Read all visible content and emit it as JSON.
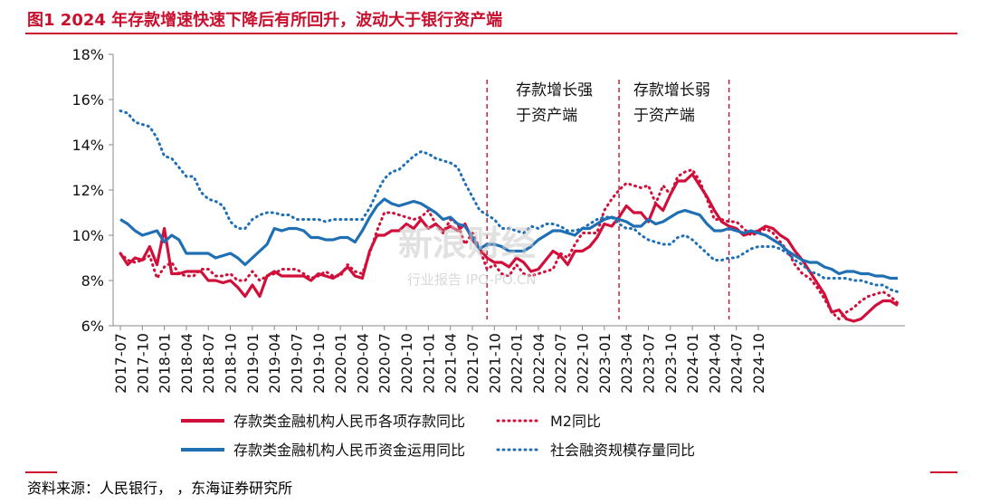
{
  "figure": {
    "title": "图1  2024 年存款增速快速下降后有所回升，波动大于银行资产端",
    "source": "资料来源：人民银行，            ，东海证券研究所",
    "watermark": {
      "main": "新浪财经",
      "sub": "行业报告 IPO-PO.CN"
    }
  },
  "colors": {
    "accent": "#c8102e",
    "red_series": "#d0103a",
    "blue_series": "#1f6fb5",
    "axis": "#888888"
  },
  "chart_data": {
    "type": "line",
    "title": "",
    "xlabel": "",
    "ylabel": "",
    "ylim": [
      6,
      18
    ],
    "yticks": [
      6,
      8,
      10,
      12,
      14,
      16,
      18
    ],
    "ytick_labels": [
      "6%",
      "8%",
      "10%",
      "12%",
      "14%",
      "16%",
      "18%"
    ],
    "xtick_labels": [
      "2017-07",
      "2017-10",
      "2018-01",
      "2018-04",
      "2018-07",
      "2018-10",
      "2019-01",
      "2019-04",
      "2019-07",
      "2019-10",
      "2020-01",
      "2020-04",
      "2020-07",
      "2020-10",
      "2021-01",
      "2021-04",
      "2021-07",
      "2021-10",
      "2022-01",
      "2022-04",
      "2022-07",
      "2022-10",
      "2023-01",
      "2023-04",
      "2023-07",
      "2023-10",
      "2024-01",
      "2024-04",
      "2024-07",
      "2024-10"
    ],
    "grid": false,
    "legend_position": "bottom",
    "x_start": "2017-07",
    "annotations": [
      {
        "lines": [
          "存款增长强",
          "于资产端"
        ],
        "between": [
          "2021-10",
          "2023-03"
        ]
      },
      {
        "lines": [
          "存款增长弱",
          "于资产端"
        ],
        "between": [
          "2023-03",
          "2024-06"
        ]
      }
    ],
    "dividers": [
      "2021-09",
      "2023-03",
      "2024-06"
    ],
    "series": [
      {
        "name": "存款类金融机构人民币各项存款同比",
        "color": "#d0103a",
        "dash": "solid",
        "values": [
          9.2,
          8.7,
          9.0,
          8.9,
          9.5,
          8.7,
          10.3,
          8.3,
          8.3,
          8.4,
          8.4,
          8.4,
          8.0,
          8.0,
          7.9,
          8.0,
          7.7,
          7.3,
          7.8,
          7.3,
          8.2,
          8.4,
          8.2,
          8.2,
          8.2,
          8.2,
          8.0,
          8.3,
          8.2,
          8.1,
          8.3,
          8.6,
          8.2,
          8.1,
          9.3,
          10.0,
          10.0,
          10.2,
          10.2,
          10.5,
          10.3,
          10.7,
          10.3,
          10.5,
          10.2,
          10.4,
          10.2,
          10.5,
          9.8,
          9.4,
          9.0,
          8.8,
          8.8,
          8.6,
          9.0,
          8.8,
          8.4,
          8.5,
          8.9,
          9.3,
          9.1,
          8.7,
          9.3,
          9.3,
          9.5,
          9.9,
          10.5,
          10.4,
          10.8,
          11.3,
          11.0,
          11.0,
          10.6,
          11.4,
          11.1,
          11.8,
          12.4,
          12.4,
          12.7,
          12.2,
          11.7,
          11.1,
          10.6,
          10.4,
          10.3,
          10.0,
          10.1,
          10.2,
          10.4,
          10.3,
          10.0,
          9.8,
          9.3,
          8.9,
          8.4,
          7.9,
          7.4,
          6.6,
          6.7,
          6.3,
          6.2,
          6.3,
          6.6,
          6.9,
          7.1,
          7.1,
          6.9
        ]
      },
      {
        "name": "M2同比",
        "color": "#d0103a",
        "dash": "dotted",
        "values": [
          9.2,
          8.9,
          8.8,
          8.9,
          9.1,
          8.1,
          8.6,
          8.8,
          8.3,
          8.2,
          8.2,
          8.5,
          8.5,
          8.2,
          8.2,
          8.3,
          8.0,
          8.0,
          8.4,
          8.0,
          8.2,
          8.3,
          8.5,
          8.5,
          8.5,
          8.3,
          8.1,
          8.2,
          8.4,
          8.2,
          8.2,
          8.7,
          8.4,
          8.3,
          9.2,
          10.2,
          11.0,
          11.0,
          10.9,
          10.8,
          10.7,
          10.8,
          11.1,
          10.5,
          10.1,
          10.7,
          10.5,
          9.6,
          10.1,
          9.4,
          8.5,
          8.7,
          8.3,
          8.2,
          8.7,
          8.3,
          8.2,
          8.3,
          8.4,
          8.5,
          9.2,
          9.0,
          9.6,
          10.1,
          10.1,
          10.1,
          11.1,
          11.6,
          12.0,
          12.3,
          12.2,
          12.1,
          12.2,
          11.4,
          12.2,
          11.8,
          12.6,
          12.8,
          12.9,
          12.4,
          11.6,
          10.7,
          10.7,
          10.6,
          10.6,
          10.3,
          10.0,
          10.1,
          10.3,
          10.1,
          9.7,
          9.3,
          8.7,
          8.3,
          8.1,
          7.7,
          7.2,
          6.6,
          6.3,
          6.6,
          6.8,
          7.1,
          7.3,
          7.4,
          7.5,
          7.3,
          7.0
        ]
      },
      {
        "name": "存款类金融机构人民币资金运用同比",
        "color": "#1f6fb5",
        "dash": "solid",
        "values": [
          10.7,
          10.5,
          10.2,
          10.0,
          10.1,
          10.2,
          9.7,
          10.0,
          9.8,
          9.2,
          9.2,
          9.2,
          9.2,
          9.0,
          9.1,
          9.2,
          9.0,
          8.7,
          9.0,
          9.3,
          9.6,
          10.3,
          10.2,
          10.3,
          10.3,
          10.2,
          9.9,
          9.9,
          9.8,
          9.8,
          9.9,
          9.9,
          9.7,
          10.2,
          10.8,
          11.3,
          11.6,
          11.4,
          11.3,
          11.4,
          11.5,
          11.4,
          11.2,
          11.0,
          10.7,
          10.8,
          10.5,
          10.4,
          9.9,
          9.4,
          9.6,
          9.6,
          9.5,
          9.3,
          9.3,
          9.3,
          9.5,
          9.8,
          10.0,
          10.2,
          10.2,
          10.1,
          10.0,
          10.3,
          10.3,
          10.5,
          10.7,
          10.8,
          10.7,
          10.6,
          10.4,
          10.4,
          10.7,
          10.5,
          10.6,
          10.8,
          11.0,
          11.1,
          11.0,
          10.9,
          10.5,
          10.2,
          10.2,
          10.3,
          10.2,
          10.1,
          10.2,
          10.1,
          10.0,
          9.8,
          9.6,
          9.3,
          9.1,
          8.9,
          8.8,
          8.8,
          8.6,
          8.5,
          8.3,
          8.4,
          8.4,
          8.3,
          8.3,
          8.2,
          8.2,
          8.1,
          8.1
        ]
      },
      {
        "name": "社会融资规模存量同比",
        "color": "#1f6fb5",
        "dash": "dotted",
        "values": [
          15.5,
          15.4,
          15.0,
          14.9,
          14.8,
          14.3,
          13.5,
          13.4,
          13.0,
          12.6,
          12.6,
          11.9,
          11.6,
          11.5,
          11.3,
          10.6,
          10.3,
          10.3,
          10.7,
          10.9,
          11.0,
          11.0,
          10.9,
          10.9,
          10.7,
          10.7,
          10.7,
          10.7,
          10.6,
          10.7,
          10.7,
          10.7,
          10.7,
          10.7,
          11.2,
          11.9,
          12.5,
          12.8,
          12.9,
          13.2,
          13.5,
          13.7,
          13.6,
          13.4,
          13.3,
          13.2,
          13.0,
          12.3,
          11.7,
          11.1,
          10.9,
          10.7,
          10.3,
          10.3,
          10.2,
          10.1,
          10.4,
          10.3,
          10.5,
          10.5,
          10.4,
          10.2,
          10.2,
          10.3,
          10.5,
          10.7,
          10.8,
          10.8,
          10.5,
          10.3,
          10.3,
          10.0,
          9.8,
          9.7,
          9.6,
          9.6,
          9.9,
          10.0,
          9.8,
          9.5,
          9.2,
          8.9,
          8.9,
          9.0,
          9.0,
          9.2,
          9.4,
          9.5,
          9.5,
          9.5,
          9.4,
          9.2,
          8.9,
          8.7,
          8.4,
          8.3,
          8.1,
          8.1,
          8.1,
          8.1,
          8.0,
          8.0,
          7.9,
          7.8,
          7.8,
          7.6,
          7.5
        ]
      }
    ]
  }
}
